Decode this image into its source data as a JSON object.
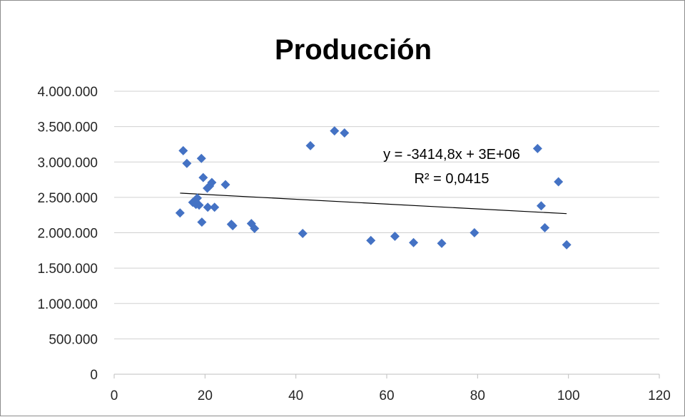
{
  "chart_data": {
    "type": "scatter",
    "title": "Producción",
    "xlabel": "",
    "ylabel": "",
    "xlim": [
      0,
      120
    ],
    "ylim": [
      0,
      4000000
    ],
    "xticks": [
      0,
      20,
      40,
      60,
      80,
      100,
      120
    ],
    "yticks": [
      0,
      500000,
      1000000,
      1500000,
      2000000,
      2500000,
      3000000,
      3500000,
      4000000
    ],
    "xtick_labels": [
      "0",
      "20",
      "40",
      "60",
      "80",
      "100",
      "120"
    ],
    "ytick_labels": [
      "0",
      "500.000",
      "1.000.000",
      "1.500.000",
      "2.000.000",
      "2.500.000",
      "3.000.000",
      "3.500.000",
      "4.000.000"
    ],
    "grid": "horizontal",
    "legend": "none",
    "series": [
      {
        "marker": "diamond",
        "color": "#4472C4",
        "points": [
          [
            14.5,
            2280000
          ],
          [
            15.2,
            3160000
          ],
          [
            16.0,
            2980000
          ],
          [
            17.3,
            2430000
          ],
          [
            18.0,
            2400000
          ],
          [
            18.3,
            2490000
          ],
          [
            18.7,
            2390000
          ],
          [
            19.2,
            3050000
          ],
          [
            19.3,
            2150000
          ],
          [
            19.6,
            2780000
          ],
          [
            20.5,
            2630000
          ],
          [
            20.6,
            2360000
          ],
          [
            21.0,
            2660000
          ],
          [
            21.5,
            2710000
          ],
          [
            22.1,
            2360000
          ],
          [
            24.5,
            2680000
          ],
          [
            25.8,
            2120000
          ],
          [
            26.1,
            2100000
          ],
          [
            30.2,
            2130000
          ],
          [
            30.9,
            2060000
          ],
          [
            41.5,
            1990000
          ],
          [
            43.2,
            3230000
          ],
          [
            48.5,
            3440000
          ],
          [
            50.7,
            3410000
          ],
          [
            56.5,
            1890000
          ],
          [
            61.8,
            1950000
          ],
          [
            65.9,
            1860000
          ],
          [
            72.1,
            1850000
          ],
          [
            79.3,
            2000000
          ],
          [
            93.2,
            3190000
          ],
          [
            94.0,
            2380000
          ],
          [
            94.8,
            2070000
          ],
          [
            97.8,
            2720000
          ],
          [
            99.6,
            1830000
          ]
        ]
      }
    ],
    "trendline": {
      "type": "linear",
      "color": "#000000",
      "x_range": [
        14.5,
        99.6
      ],
      "y_range": [
        2560000,
        2270000
      ],
      "equation": "y = -3414,8x + 3E+06",
      "r_squared": "R² = 0,0415"
    }
  }
}
